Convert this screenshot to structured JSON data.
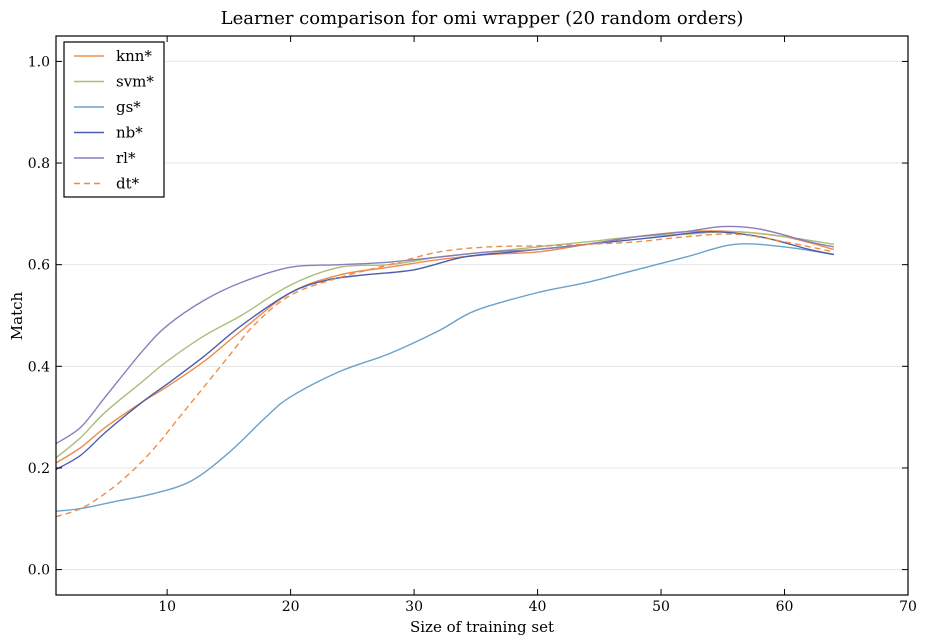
{
  "chart_data": {
    "type": "line",
    "title": "Learner comparison for omi wrapper (20 random orders)",
    "xlabel": "Size of training set",
    "ylabel": "Match",
    "xlim": [
      1,
      70
    ],
    "ylim": [
      -0.05,
      1.05
    ],
    "xticks": [
      10,
      20,
      30,
      40,
      50,
      60,
      70
    ],
    "yticks": [
      0.0,
      0.2,
      0.4,
      0.6,
      0.8,
      1.0
    ],
    "ytick_labels": [
      "0.0",
      "0.2",
      "0.4",
      "0.6",
      "0.8",
      "1.0"
    ],
    "grid": "horizontal",
    "legend_position": "top-left",
    "series": [
      {
        "name": "knn*",
        "color": "#ee8d4a",
        "style": "solid",
        "x": [
          1,
          3,
          5,
          8,
          10,
          13,
          16,
          20,
          24,
          28,
          32,
          36,
          40,
          44,
          48,
          52,
          56,
          60,
          64
        ],
        "y": [
          0.21,
          0.24,
          0.28,
          0.33,
          0.36,
          0.41,
          0.47,
          0.545,
          0.58,
          0.595,
          0.61,
          0.62,
          0.625,
          0.64,
          0.655,
          0.665,
          0.665,
          0.655,
          0.63
        ]
      },
      {
        "name": "svm*",
        "color": "#a8bf78",
        "style": "solid",
        "x": [
          1,
          3,
          5,
          8,
          10,
          13,
          16,
          20,
          24,
          28,
          32,
          36,
          40,
          44,
          48,
          52,
          56,
          60,
          64
        ],
        "y": [
          0.22,
          0.26,
          0.31,
          0.37,
          0.41,
          0.46,
          0.5,
          0.56,
          0.595,
          0.6,
          0.615,
          0.625,
          0.635,
          0.645,
          0.655,
          0.66,
          0.665,
          0.655,
          0.64
        ]
      },
      {
        "name": "gs*",
        "color": "#6aa2c9",
        "style": "solid",
        "x": [
          1,
          3,
          6,
          9,
          12,
          15,
          18,
          20,
          24,
          28,
          32,
          35,
          40,
          44,
          48,
          52,
          56,
          60,
          64
        ],
        "y": [
          0.115,
          0.12,
          0.135,
          0.15,
          0.175,
          0.23,
          0.3,
          0.34,
          0.39,
          0.425,
          0.47,
          0.51,
          0.545,
          0.565,
          0.59,
          0.615,
          0.64,
          0.635,
          0.62
        ]
      },
      {
        "name": "nb*",
        "color": "#4a5dad",
        "style": "solid",
        "x": [
          1,
          3,
          5,
          8,
          10,
          13,
          16,
          20,
          23,
          26,
          30,
          34,
          38,
          42,
          46,
          50,
          54,
          58,
          62,
          64
        ],
        "y": [
          0.197,
          0.225,
          0.27,
          0.33,
          0.365,
          0.42,
          0.48,
          0.545,
          0.57,
          0.58,
          0.59,
          0.615,
          0.625,
          0.635,
          0.645,
          0.655,
          0.665,
          0.655,
          0.63,
          0.62
        ]
      },
      {
        "name": "rl*",
        "color": "#8a7dbd",
        "style": "solid",
        "x": [
          1,
          3,
          5,
          8,
          10,
          13,
          16,
          20,
          24,
          28,
          32,
          36,
          40,
          44,
          48,
          52,
          55,
          58,
          62,
          64
        ],
        "y": [
          0.248,
          0.28,
          0.34,
          0.43,
          0.48,
          0.53,
          0.565,
          0.595,
          0.6,
          0.605,
          0.615,
          0.625,
          0.63,
          0.64,
          0.655,
          0.665,
          0.675,
          0.67,
          0.645,
          0.635
        ]
      },
      {
        "name": "dt*",
        "color": "#ee8d4a",
        "style": "dashed",
        "x": [
          1,
          3,
          5,
          7,
          9,
          11,
          13,
          15,
          17,
          20,
          24,
          28,
          32,
          36,
          40,
          44,
          48,
          52,
          56,
          60,
          64
        ],
        "y": [
          0.104,
          0.12,
          0.15,
          0.19,
          0.24,
          0.3,
          0.36,
          0.42,
          0.48,
          0.54,
          0.575,
          0.6,
          0.625,
          0.635,
          0.637,
          0.64,
          0.645,
          0.655,
          0.66,
          0.645,
          0.625
        ]
      }
    ]
  }
}
